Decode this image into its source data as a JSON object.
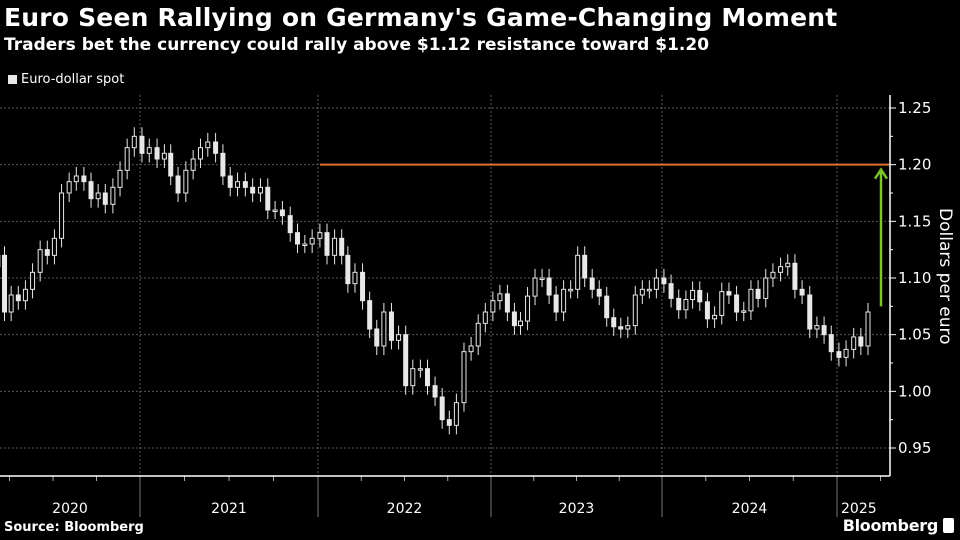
{
  "header": {
    "title": "Euro Seen Rallying on Germany's Game-Changing Moment",
    "subtitle": "Traders bet the currency could rally above $1.12 resistance toward $1.20"
  },
  "footer": {
    "source": "Source: Bloomberg",
    "brand": "Bloomberg"
  },
  "colors": {
    "background": "#000000",
    "candles": "#e8e8e8",
    "resistance_line": "#e0702a",
    "arrow": "#7dc42a",
    "grid": "#5a5a5a"
  },
  "chart_data": {
    "type": "candlestick",
    "title": "Euro Seen Rallying on Germany's Game-Changing Moment",
    "legend": [
      {
        "name": "Euro-dollar spot",
        "color": "#e8e8e8"
      }
    ],
    "legend_position": "top-left",
    "ylabel": "Dollars per euro",
    "y_axis_side": "right",
    "ylim": [
      0.95,
      1.25
    ],
    "yticks": [
      "0.95",
      "1.00",
      "1.05",
      "1.10",
      "1.15",
      "1.20",
      "1.25"
    ],
    "xticks": [
      "2020",
      "2021",
      "2022",
      "2023",
      "2024",
      "2025"
    ],
    "grid": true,
    "annotations": [
      {
        "type": "hline",
        "value": 1.2,
        "from": "2022-01-05",
        "color": "#e0702a"
      },
      {
        "type": "arrow",
        "from": 1.075,
        "to": 1.2,
        "date": "2025-03-20",
        "color": "#7dc42a"
      }
    ],
    "dates": [
      "2020-03-08",
      "2020-03-22",
      "2020-04-05",
      "2020-04-20",
      "2020-05-05",
      "2020-05-20",
      "2020-06-05",
      "2020-06-20",
      "2020-07-05",
      "2020-07-20",
      "2020-08-05",
      "2020-08-20",
      "2020-09-05",
      "2020-09-20",
      "2020-10-05",
      "2020-10-20",
      "2020-11-05",
      "2020-11-20",
      "2020-12-05",
      "2020-12-20",
      "2021-01-05",
      "2021-01-20",
      "2021-02-05",
      "2021-02-20",
      "2021-03-05",
      "2021-03-20",
      "2021-04-05",
      "2021-04-20",
      "2021-05-05",
      "2021-05-20",
      "2021-06-05",
      "2021-06-20",
      "2021-07-05",
      "2021-07-20",
      "2021-08-05",
      "2021-08-20",
      "2021-09-05",
      "2021-09-20",
      "2021-10-05",
      "2021-10-20",
      "2021-11-05",
      "2021-11-20",
      "2021-12-05",
      "2021-12-20",
      "2022-01-05",
      "2022-01-20",
      "2022-02-05",
      "2022-02-20",
      "2022-03-05",
      "2022-03-20",
      "2022-04-05",
      "2022-04-20",
      "2022-05-05",
      "2022-05-20",
      "2022-06-05",
      "2022-06-20",
      "2022-07-05",
      "2022-07-20",
      "2022-08-05",
      "2022-08-20",
      "2022-09-05",
      "2022-09-20",
      "2022-10-05",
      "2022-10-20",
      "2022-11-05",
      "2022-11-20",
      "2022-12-05",
      "2022-12-20",
      "2023-01-05",
      "2023-01-20",
      "2023-02-05",
      "2023-02-20",
      "2023-03-05",
      "2023-03-20",
      "2023-04-05",
      "2023-04-20",
      "2023-05-05",
      "2023-05-20",
      "2023-06-05",
      "2023-06-20",
      "2023-07-05",
      "2023-07-20",
      "2023-08-05",
      "2023-08-20",
      "2023-09-05",
      "2023-09-20",
      "2023-10-05",
      "2023-10-20",
      "2023-11-05",
      "2023-11-20",
      "2023-12-05",
      "2023-12-20",
      "2024-01-05",
      "2024-01-20",
      "2024-02-05",
      "2024-02-20",
      "2024-03-05",
      "2024-03-20",
      "2024-04-05",
      "2024-04-20",
      "2024-05-05",
      "2024-05-20",
      "2024-06-05",
      "2024-06-20",
      "2024-07-05",
      "2024-07-20",
      "2024-08-05",
      "2024-08-20",
      "2024-09-05",
      "2024-09-20",
      "2024-10-05",
      "2024-10-20",
      "2024-11-05",
      "2024-11-20",
      "2024-12-05",
      "2024-12-20",
      "2025-01-05",
      "2025-01-20",
      "2025-02-05",
      "2025-02-20",
      "2025-03-07"
    ],
    "close": [
      1.12,
      1.07,
      1.085,
      1.08,
      1.09,
      1.105,
      1.125,
      1.12,
      1.135,
      1.175,
      1.185,
      1.19,
      1.185,
      1.17,
      1.175,
      1.165,
      1.18,
      1.195,
      1.215,
      1.225,
      1.21,
      1.215,
      1.205,
      1.21,
      1.19,
      1.175,
      1.195,
      1.205,
      1.215,
      1.22,
      1.21,
      1.19,
      1.18,
      1.185,
      1.18,
      1.175,
      1.18,
      1.16,
      1.16,
      1.155,
      1.14,
      1.13,
      1.13,
      1.135,
      1.14,
      1.12,
      1.135,
      1.12,
      1.095,
      1.105,
      1.08,
      1.055,
      1.04,
      1.07,
      1.045,
      1.05,
      1.005,
      1.02,
      1.02,
      1.005,
      0.995,
      0.975,
      0.97,
      0.99,
      1.035,
      1.04,
      1.06,
      1.07,
      1.08,
      1.086,
      1.07,
      1.058,
      1.062,
      1.084,
      1.1,
      1.1,
      1.085,
      1.07,
      1.09,
      1.09,
      1.12,
      1.1,
      1.09,
      1.084,
      1.065,
      1.057,
      1.055,
      1.058,
      1.085,
      1.09,
      1.09,
      1.1,
      1.095,
      1.082,
      1.072,
      1.081,
      1.089,
      1.079,
      1.064,
      1.067,
      1.088,
      1.085,
      1.07,
      1.071,
      1.09,
      1.082,
      1.1,
      1.105,
      1.11,
      1.113,
      1.09,
      1.085,
      1.055,
      1.058,
      1.05,
      1.035,
      1.03,
      1.037,
      1.048,
      1.04,
      1.07
    ]
  }
}
